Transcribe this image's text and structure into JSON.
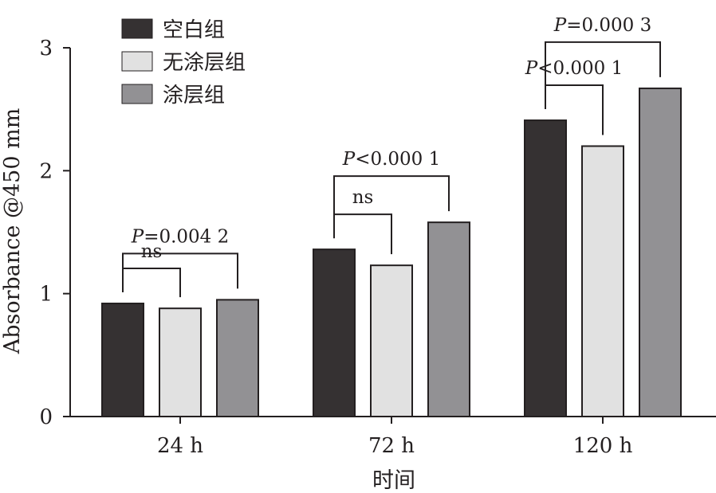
{
  "chart_data": {
    "type": "bar",
    "xlabel": "时间",
    "ylabel": "Absorbance @450 mm",
    "ylim": [
      0,
      3
    ],
    "yticks": [
      "0",
      "1",
      "2",
      "3"
    ],
    "categories": [
      "24 h",
      "72 h",
      "120 h"
    ],
    "series": [
      {
        "name": "空白组",
        "color": "#353132",
        "values": [
          0.92,
          1.36,
          2.41
        ]
      },
      {
        "name": "无涂层组",
        "color": "#e1e1e1",
        "values": [
          0.88,
          1.23,
          2.2
        ]
      },
      {
        "name": "涂层组",
        "color": "#929194",
        "values": [
          0.95,
          1.58,
          2.67
        ]
      }
    ],
    "legend_position": "top-left",
    "grid": false,
    "annotations": [
      {
        "category": 0,
        "from": 0,
        "to": 1,
        "label": "ns"
      },
      {
        "category": 0,
        "from": 0,
        "to": 2,
        "label_italic": "P",
        "label": "=0.004 2"
      },
      {
        "category": 1,
        "from": 0,
        "to": 1,
        "label": "ns"
      },
      {
        "category": 1,
        "from": 0,
        "to": 2,
        "label_italic": "P",
        "label": "<0.000 1"
      },
      {
        "category": 2,
        "from": 0,
        "to": 1,
        "label_italic": "P",
        "label": "<0.000 1"
      },
      {
        "category": 2,
        "from": 0,
        "to": 2,
        "label_italic": "P",
        "label": "=0.000 3"
      }
    ]
  }
}
